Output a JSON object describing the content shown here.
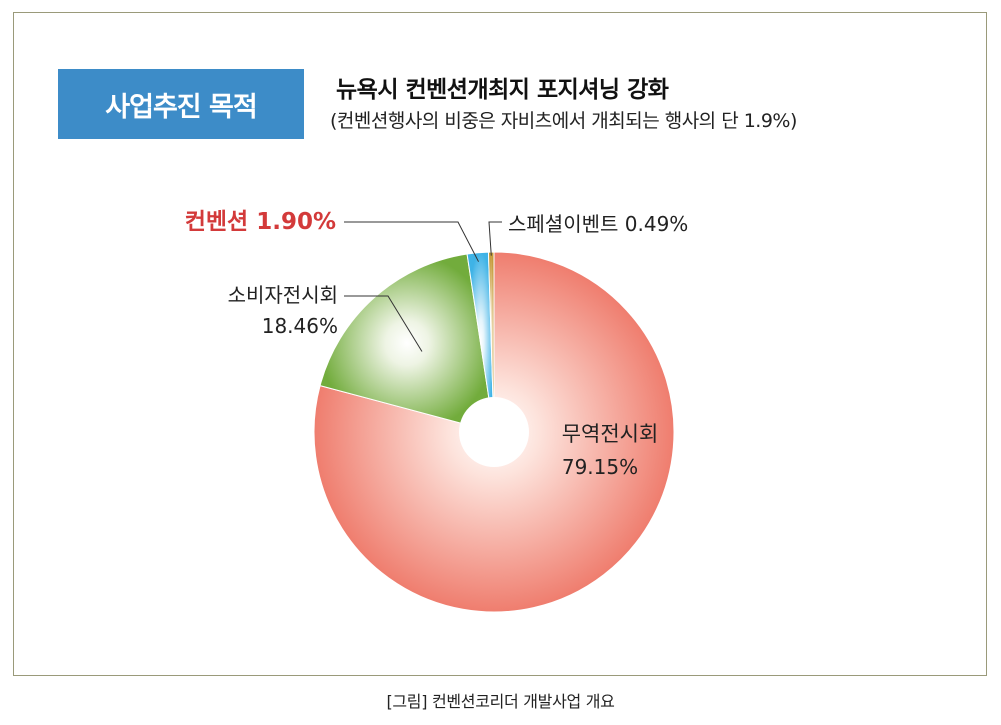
{
  "header": {
    "badge": "사업추진 목적",
    "headline": "뉴욕시 컨벤션개최지 포지셔닝 강화",
    "subhead": "(컨벤션행사의 비중은 자비츠에서 개최되는 행사의 단 1.9%)"
  },
  "caption": "[그림] 컨벤션코리더 개발사업 개요",
  "colors": {
    "trade": "#ef7d6e",
    "consumer": "#72ac3c",
    "convention": "#3fb3e6",
    "special": "#c69a3a",
    "highlight_text": "#d33a3a",
    "badge_bg": "#3d8cc8"
  },
  "chart_data": {
    "type": "pie",
    "donut": true,
    "start": "12 o'clock",
    "direction": "clockwise",
    "slices": [
      {
        "name": "무역전시회",
        "value": 79.15,
        "value_label": "79.15%",
        "color_key": "trade"
      },
      {
        "name": "소비자전시회",
        "value": 18.46,
        "value_label": "18.46%",
        "color_key": "consumer"
      },
      {
        "name": "컨벤션",
        "value": 1.9,
        "value_label": "1.90%",
        "color_key": "convention",
        "highlight": true
      },
      {
        "name": "스페셜이벤트",
        "value": 0.49,
        "value_label": "0.49%",
        "color_key": "special"
      }
    ]
  }
}
